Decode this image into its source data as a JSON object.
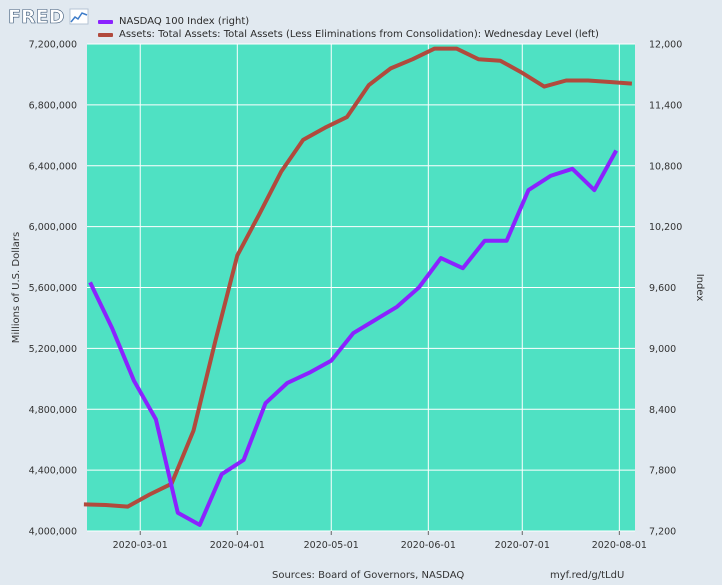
{
  "header": {
    "logo_text": "FRED",
    "legend": [
      {
        "label": "NASDAQ 100 Index (right)",
        "color": "#8b22ff"
      },
      {
        "label": "Assets: Total Assets: Total Assets (Less Eliminations from Consolidation): Wednesday Level (left)",
        "color": "#b14a3d"
      }
    ]
  },
  "footer": {
    "source": "Sources: Board of Governors, NASDAQ",
    "link": "myf.red/g/tLdU"
  },
  "colors": {
    "plot_background": "#4fe1c3",
    "page_background": "#e1e9f0",
    "assets_line": "#b14a3d",
    "nasdaq_line": "#8b22ff"
  },
  "chart_data": {
    "type": "line",
    "grid": true,
    "left_axis": {
      "label": "Millions of U.S. Dollars",
      "range": [
        4000000,
        7200000
      ],
      "ticks": [
        "4,000,000",
        "4,400,000",
        "4,800,000",
        "5,200,000",
        "5,600,000",
        "6,000,000",
        "6,400,000",
        "6,800,000",
        "7,200,000"
      ]
    },
    "right_axis": {
      "label": "Index",
      "range": [
        7200,
        12000
      ],
      "ticks": [
        "7,200",
        "7,800",
        "8,400",
        "9,000",
        "9,600",
        "10,200",
        "10,800",
        "11,400",
        "12,000"
      ]
    },
    "x_axis": {
      "range": [
        "2020-02-13",
        "2020-08-06"
      ],
      "ticks": [
        {
          "date": "2020-03-01",
          "label": "2020-03-01"
        },
        {
          "date": "2020-04-01",
          "label": "2020-04-01"
        },
        {
          "date": "2020-05-01",
          "label": "2020-05-01"
        },
        {
          "date": "2020-06-01",
          "label": "2020-06-01"
        },
        {
          "date": "2020-07-01",
          "label": "2020-07-01"
        },
        {
          "date": "2020-08-01",
          "label": "2020-08-01"
        }
      ]
    },
    "series": [
      {
        "name": "Assets: Total Assets: Total Assets (Less Eliminations from Consolidation): Wednesday Level (left)",
        "axis": "left",
        "points": [
          [
            "2020-02-12",
            4175000
          ],
          [
            "2020-02-19",
            4171000
          ],
          [
            "2020-02-26",
            4160000
          ],
          [
            "2020-03-04",
            4240000
          ],
          [
            "2020-03-11",
            4310000
          ],
          [
            "2020-03-18",
            4660000
          ],
          [
            "2020-03-25",
            5250000
          ],
          [
            "2020-04-01",
            5810000
          ],
          [
            "2020-04-08",
            6080000
          ],
          [
            "2020-04-15",
            6360000
          ],
          [
            "2020-04-22",
            6570000
          ],
          [
            "2020-04-29",
            6650000
          ],
          [
            "2020-05-06",
            6720000
          ],
          [
            "2020-05-13",
            6930000
          ],
          [
            "2020-05-20",
            7040000
          ],
          [
            "2020-05-27",
            7100000
          ],
          [
            "2020-06-03",
            7170000
          ],
          [
            "2020-06-10",
            7170000
          ],
          [
            "2020-06-17",
            7100000
          ],
          [
            "2020-06-24",
            7090000
          ],
          [
            "2020-07-01",
            7010000
          ],
          [
            "2020-07-08",
            6920000
          ],
          [
            "2020-07-15",
            6960000
          ],
          [
            "2020-07-22",
            6960000
          ],
          [
            "2020-07-29",
            6950000
          ],
          [
            "2020-08-05",
            6940000
          ]
        ]
      },
      {
        "name": "NASDAQ 100 Index (right)",
        "axis": "right",
        "points": [
          [
            "2020-02-14",
            9650
          ],
          [
            "2020-02-21",
            9200
          ],
          [
            "2020-02-28",
            8680
          ],
          [
            "2020-03-06",
            8300
          ],
          [
            "2020-03-13",
            7380
          ],
          [
            "2020-03-20",
            7260
          ],
          [
            "2020-03-27",
            7760
          ],
          [
            "2020-04-03",
            7900
          ],
          [
            "2020-04-10",
            8460
          ],
          [
            "2020-04-17",
            8660
          ],
          [
            "2020-04-24",
            8760
          ],
          [
            "2020-05-01",
            8880
          ],
          [
            "2020-05-08",
            9150
          ],
          [
            "2020-05-15",
            9280
          ],
          [
            "2020-05-22",
            9410
          ],
          [
            "2020-05-29",
            9600
          ],
          [
            "2020-06-05",
            9890
          ],
          [
            "2020-06-12",
            9790
          ],
          [
            "2020-06-19",
            10060
          ],
          [
            "2020-06-26",
            10060
          ],
          [
            "2020-07-03",
            10560
          ],
          [
            "2020-07-10",
            10700
          ],
          [
            "2020-07-17",
            10770
          ],
          [
            "2020-07-24",
            10560
          ],
          [
            "2020-07-31",
            10950
          ]
        ]
      }
    ]
  }
}
